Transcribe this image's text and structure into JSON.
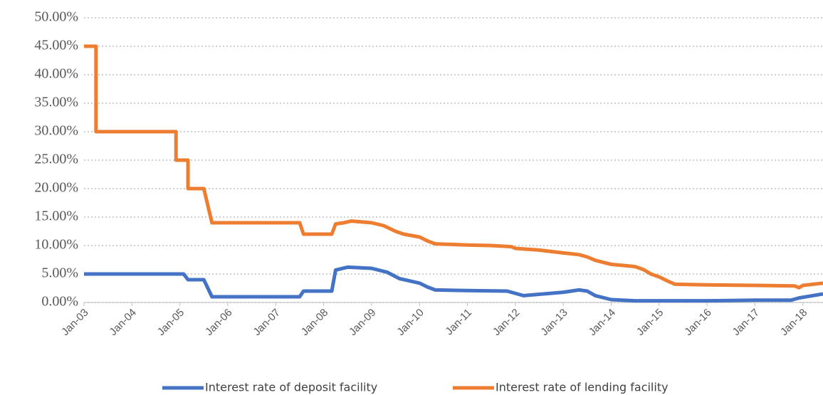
{
  "chart_data": {
    "type": "line",
    "xlim": [
      2003,
      2018.42
    ],
    "xticks": [
      {
        "value": 2003,
        "label": "Jan-03"
      },
      {
        "value": 2004,
        "label": "Jan-04"
      },
      {
        "value": 2005,
        "label": "Jan-05"
      },
      {
        "value": 2006,
        "label": "Jan-06"
      },
      {
        "value": 2007,
        "label": "Jan-07"
      },
      {
        "value": 2008,
        "label": "Jan-08"
      },
      {
        "value": 2009,
        "label": "Jan-09"
      },
      {
        "value": 2010,
        "label": "Jan-10"
      },
      {
        "value": 2011,
        "label": "Jan-11"
      },
      {
        "value": 2012,
        "label": "Jan-12"
      },
      {
        "value": 2013,
        "label": "Jan-13"
      },
      {
        "value": 2014,
        "label": "Jan-14"
      },
      {
        "value": 2015,
        "label": "Jan-15"
      },
      {
        "value": 2016,
        "label": "Jan-16"
      },
      {
        "value": 2017,
        "label": "Jan-17"
      },
      {
        "value": 2018,
        "label": "Jan-18"
      }
    ],
    "ylim": [
      0,
      50
    ],
    "yticks": [
      {
        "value": 0,
        "label": "0.00%"
      },
      {
        "value": 5,
        "label": "5.00%"
      },
      {
        "value": 10,
        "label": "10.00%"
      },
      {
        "value": 15,
        "label": "15.00%"
      },
      {
        "value": 20,
        "label": "20.00%"
      },
      {
        "value": 25,
        "label": "25.00%"
      },
      {
        "value": 30,
        "label": "30.00%"
      },
      {
        "value": 35,
        "label": "35.00%"
      },
      {
        "value": 40,
        "label": "40.00%"
      },
      {
        "value": 45,
        "label": "45.00%"
      },
      {
        "value": 50,
        "label": "50.00%"
      }
    ],
    "grid": true,
    "legend": "bottom",
    "series": [
      {
        "name": "Interest rate of deposit facility",
        "color": "#4472c4",
        "x": [
          2003,
          2005.08,
          2005.17,
          2005.5,
          2005.67,
          2007.5,
          2007.58,
          2008.17,
          2008.25,
          2008.5,
          2009.0,
          2009.33,
          2009.58,
          2010.0,
          2010.17,
          2010.33,
          2011.0,
          2011.83,
          2012.17,
          2013.0,
          2013.33,
          2013.5,
          2013.67,
          2014.0,
          2014.5,
          2016.0,
          2017.0,
          2017.75,
          2017.92,
          2018.42
        ],
        "values": [
          5,
          5,
          4,
          4,
          1,
          1,
          2,
          2,
          5.7,
          6.2,
          6,
          5.3,
          4.2,
          3.4,
          2.7,
          2.2,
          2.1,
          2,
          1.2,
          1.8,
          2.2,
          2,
          1.2,
          0.5,
          0.3,
          0.3,
          0.4,
          0.4,
          0.8,
          1.5
        ]
      },
      {
        "name": "Interest rate of lending facility",
        "color": "#ed7d31",
        "x": [
          2003,
          2003.25,
          2003.25,
          2004.92,
          2004.92,
          2005.17,
          2005.17,
          2005.5,
          2005.67,
          2007.5,
          2007.58,
          2008.17,
          2008.25,
          2008.42,
          2008.58,
          2009.0,
          2009.25,
          2009.5,
          2009.67,
          2010.0,
          2010.17,
          2010.33,
          2011.0,
          2011.5,
          2011.92,
          2012.0,
          2012.5,
          2013.0,
          2013.33,
          2013.5,
          2013.67,
          2014.0,
          2014.5,
          2014.67,
          2014.83,
          2015.0,
          2015.17,
          2015.33,
          2016.0,
          2016.5,
          2017.0,
          2017.83,
          2017.92,
          2018.0,
          2018.42
        ],
        "values": [
          45,
          45,
          30,
          30,
          25,
          25,
          20,
          20,
          14,
          14,
          12,
          12,
          13.8,
          14,
          14.3,
          14,
          13.5,
          12.5,
          12,
          11.5,
          10.8,
          10.3,
          10.1,
          10,
          9.8,
          9.5,
          9.2,
          8.7,
          8.4,
          8,
          7.4,
          6.7,
          6.3,
          5.8,
          5,
          4.5,
          3.8,
          3.2,
          3.1,
          3.05,
          3,
          2.9,
          2.6,
          3,
          3.4
        ]
      }
    ]
  }
}
